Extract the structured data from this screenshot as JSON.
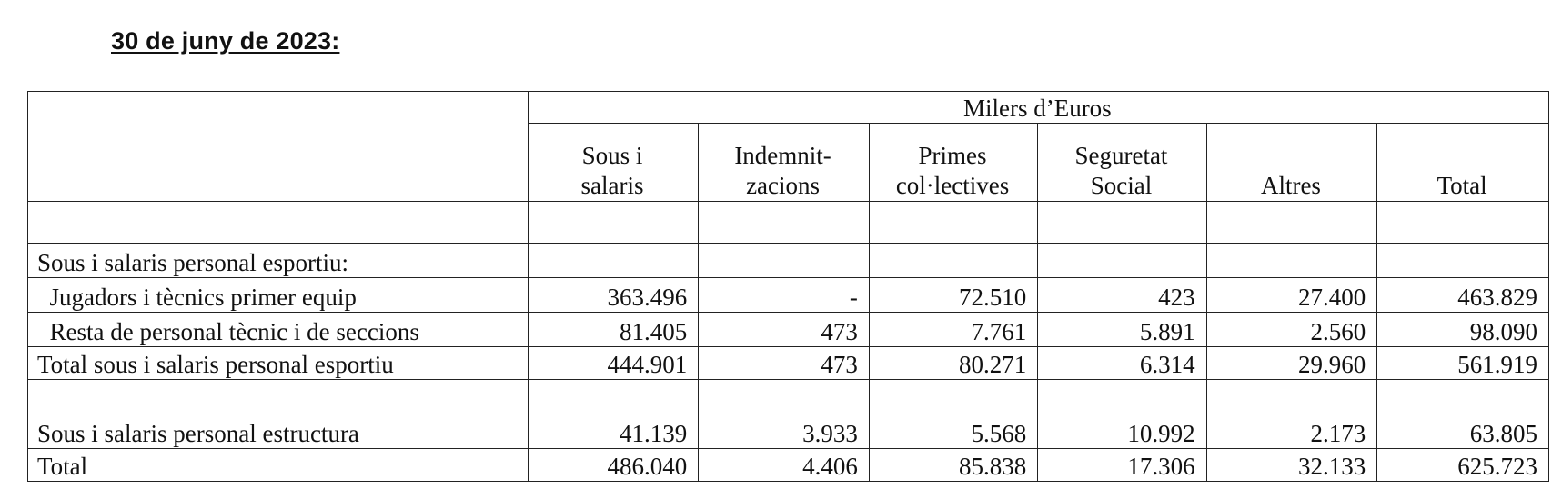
{
  "heading": "30 de juny de 2023:",
  "unit_header": "Milers d’Euros",
  "columns": [
    [
      "Sous i",
      "salaris"
    ],
    [
      "Indemnit-",
      "zacions"
    ],
    [
      "Primes",
      "col·lectives"
    ],
    [
      "Seguretat",
      "Social"
    ],
    [
      "",
      "Altres"
    ],
    [
      "",
      "Total"
    ]
  ],
  "section_label": "Sous i salaris personal esportiu:",
  "rows": [
    {
      "label": "  Jugadors i tècnics primer equip",
      "values": [
        "363.496",
        "-",
        "72.510",
        "423",
        "27.400",
        "463.829"
      ]
    },
    {
      "label": "  Resta de personal tècnic i de seccions",
      "values": [
        "81.405",
        "473",
        "7.761",
        "5.891",
        "2.560",
        "98.090"
      ]
    }
  ],
  "subtotal": {
    "label": "Total sous i salaris personal esportiu",
    "values": [
      "444.901",
      "473",
      "80.271",
      "6.314",
      "29.960",
      "561.919"
    ]
  },
  "structure": {
    "label": "Sous i salaris personal estructura",
    "values": [
      "41.139",
      "3.933",
      "5.568",
      "10.992",
      "2.173",
      "63.805"
    ]
  },
  "total": {
    "label": "Total",
    "values": [
      "486.040",
      "4.406",
      "85.838",
      "17.306",
      "32.133",
      "625.723"
    ]
  }
}
